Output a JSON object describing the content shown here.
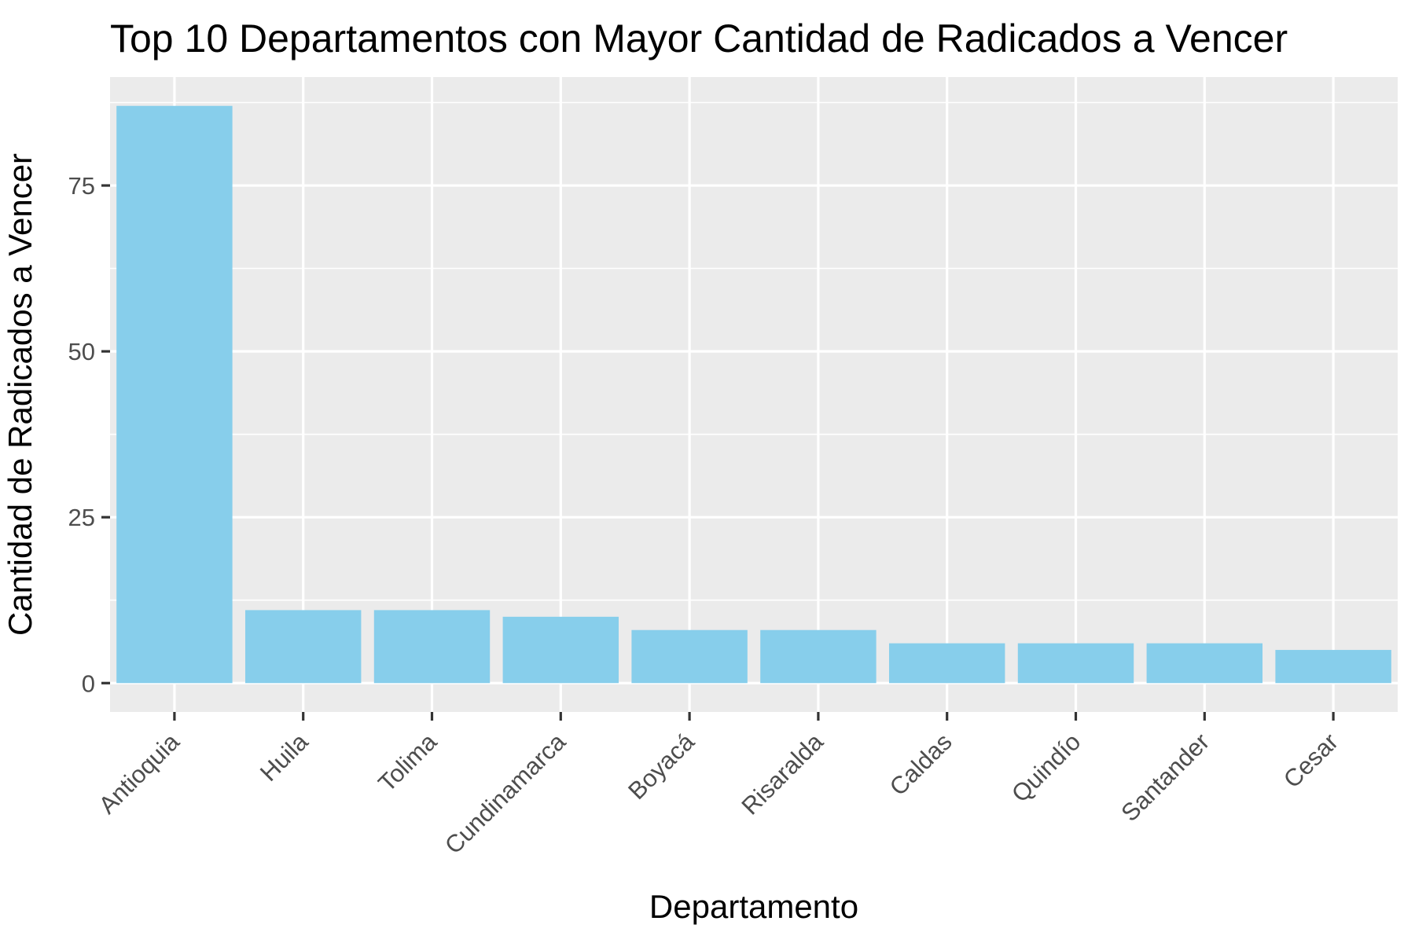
{
  "chart_data": {
    "type": "bar",
    "title": "Top 10 Departamentos con Mayor Cantidad de Radicados a Vencer",
    "xlabel": "Departamento",
    "ylabel": "Cantidad de Radicados a Vencer",
    "categories": [
      "Antioquia",
      "Huila",
      "Tolima",
      "Cundinamarca",
      "Boyacá",
      "Risaralda",
      "Caldas",
      "Quindío",
      "Santander",
      "Cesar"
    ],
    "values": [
      87,
      11,
      11,
      10,
      8,
      8,
      6,
      6,
      6,
      5
    ],
    "ylim": [
      -4.35,
      91.35
    ],
    "yticks": [
      0,
      25,
      50,
      75
    ],
    "ytick_labels": [
      "0",
      "25",
      "50",
      "75"
    ],
    "grid": true,
    "legend": "none",
    "colors": {
      "bar": "#87CEEB",
      "panel_background": "#EBEBEB",
      "grid": "#FFFFFF",
      "tick": "#333333",
      "tick_label": "#4D4D4D"
    }
  }
}
